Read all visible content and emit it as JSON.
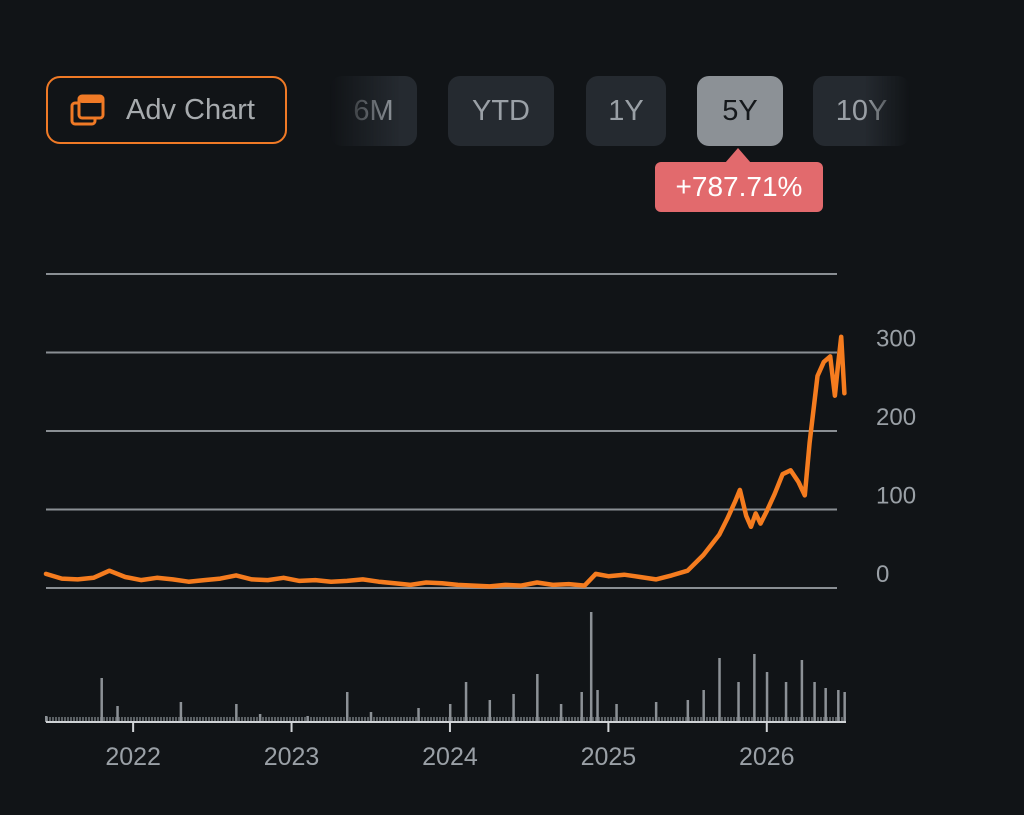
{
  "toolbar": {
    "adv_chart_label": "Adv Chart",
    "ranges": [
      "6M",
      "YTD",
      "1Y",
      "5Y",
      "10Y"
    ],
    "active_range": "5Y"
  },
  "tooltip": {
    "change": "+787.71%"
  },
  "colors": {
    "line": "#f57c1f",
    "accent": "#f07a26",
    "tooltip": "#e26a6d",
    "volume": "#8c9196"
  },
  "chart_data": {
    "type": "line",
    "title": "",
    "xlabel": "",
    "ylabel": "",
    "ylim": [
      0,
      400
    ],
    "xlim": [
      2021.45,
      2026.5
    ],
    "y_ticks": [
      0,
      100,
      200,
      300
    ],
    "y_tick_labels": [
      "0",
      "100",
      "200",
      "300"
    ],
    "x_ticks": [
      2022,
      2023,
      2024,
      2025,
      2026
    ],
    "x_tick_labels": [
      "2022",
      "2023",
      "2024",
      "2025",
      "2026"
    ],
    "grid": true,
    "series": [
      {
        "values": [
          [
            2021.45,
            18
          ],
          [
            2021.55,
            12
          ],
          [
            2021.65,
            11
          ],
          [
            2021.75,
            13
          ],
          [
            2021.85,
            22
          ],
          [
            2021.95,
            14
          ],
          [
            2022.05,
            10
          ],
          [
            2022.15,
            13
          ],
          [
            2022.25,
            11
          ],
          [
            2022.35,
            8
          ],
          [
            2022.45,
            10
          ],
          [
            2022.55,
            12
          ],
          [
            2022.65,
            16
          ],
          [
            2022.75,
            11
          ],
          [
            2022.85,
            10
          ],
          [
            2022.95,
            13
          ],
          [
            2023.05,
            9
          ],
          [
            2023.15,
            10
          ],
          [
            2023.25,
            8
          ],
          [
            2023.35,
            9
          ],
          [
            2023.45,
            11
          ],
          [
            2023.55,
            8
          ],
          [
            2023.65,
            6
          ],
          [
            2023.75,
            4
          ],
          [
            2023.85,
            7
          ],
          [
            2023.95,
            6
          ],
          [
            2024.05,
            4
          ],
          [
            2024.15,
            3
          ],
          [
            2024.25,
            2
          ],
          [
            2024.35,
            4
          ],
          [
            2024.45,
            3
          ],
          [
            2024.55,
            7
          ],
          [
            2024.65,
            4
          ],
          [
            2024.75,
            5
          ],
          [
            2024.85,
            3
          ],
          [
            2024.92,
            18
          ],
          [
            2025.0,
            15
          ],
          [
            2025.1,
            17
          ],
          [
            2025.2,
            14
          ],
          [
            2025.3,
            11
          ],
          [
            2025.4,
            16
          ],
          [
            2025.5,
            22
          ],
          [
            2025.6,
            42
          ],
          [
            2025.7,
            68
          ],
          [
            2025.75,
            88
          ],
          [
            2025.8,
            110
          ],
          [
            2025.83,
            125
          ],
          [
            2025.87,
            92
          ],
          [
            2025.9,
            78
          ],
          [
            2025.93,
            95
          ],
          [
            2025.96,
            82
          ],
          [
            2026.0,
            98
          ],
          [
            2026.05,
            120
          ],
          [
            2026.1,
            145
          ],
          [
            2026.15,
            150
          ],
          [
            2026.2,
            135
          ],
          [
            2026.24,
            118
          ],
          [
            2026.27,
            185
          ],
          [
            2026.32,
            270
          ],
          [
            2026.36,
            288
          ],
          [
            2026.4,
            295
          ],
          [
            2026.43,
            245
          ],
          [
            2026.45,
            285
          ],
          [
            2026.47,
            320
          ],
          [
            2026.49,
            248
          ]
        ]
      }
    ],
    "volume": {
      "values": [
        [
          2021.45,
          3
        ],
        [
          2021.8,
          22
        ],
        [
          2021.9,
          8
        ],
        [
          2022.3,
          10
        ],
        [
          2022.65,
          9
        ],
        [
          2022.8,
          4
        ],
        [
          2023.1,
          3
        ],
        [
          2023.35,
          15
        ],
        [
          2023.5,
          5
        ],
        [
          2023.8,
          7
        ],
        [
          2024.0,
          9
        ],
        [
          2024.1,
          20
        ],
        [
          2024.25,
          11
        ],
        [
          2024.4,
          14
        ],
        [
          2024.55,
          24
        ],
        [
          2024.7,
          9
        ],
        [
          2024.83,
          15
        ],
        [
          2024.89,
          55
        ],
        [
          2024.93,
          16
        ],
        [
          2025.05,
          9
        ],
        [
          2025.3,
          10
        ],
        [
          2025.5,
          11
        ],
        [
          2025.6,
          16
        ],
        [
          2025.7,
          32
        ],
        [
          2025.82,
          20
        ],
        [
          2025.92,
          34
        ],
        [
          2026.0,
          25
        ],
        [
          2026.12,
          20
        ],
        [
          2026.22,
          31
        ],
        [
          2026.3,
          20
        ],
        [
          2026.37,
          17
        ],
        [
          2026.45,
          16
        ],
        [
          2026.49,
          15
        ]
      ]
    }
  }
}
